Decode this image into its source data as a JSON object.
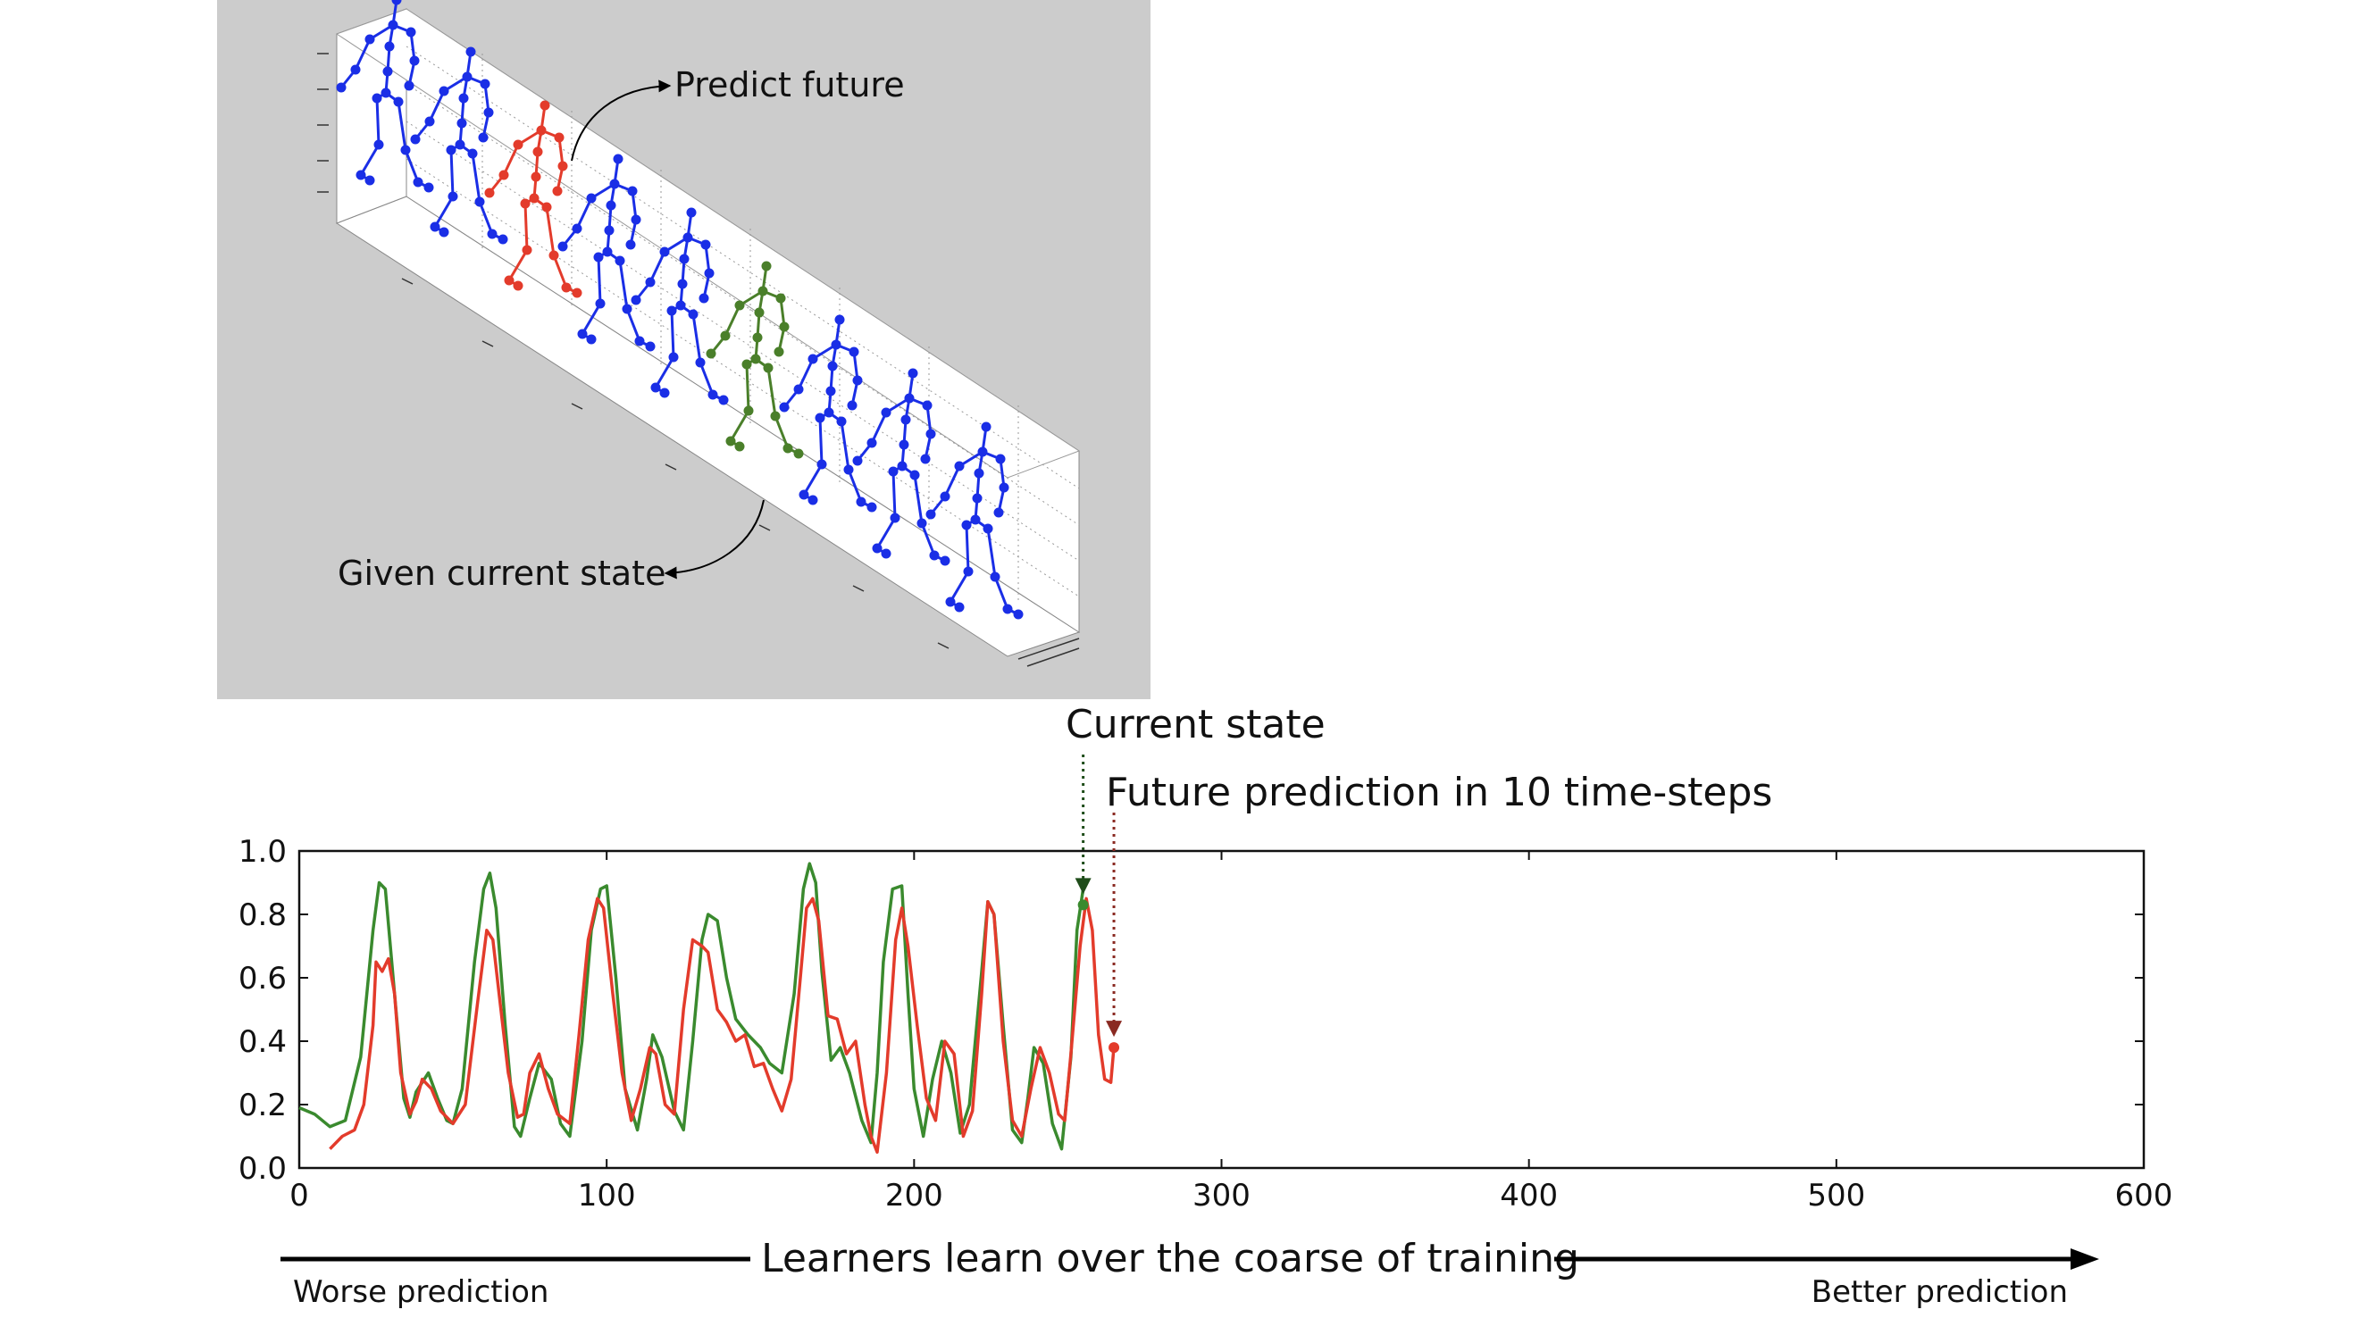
{
  "skeleton_panel": {
    "predict_label": "Predict future",
    "given_label": "Given current state",
    "figure_colors": [
      "blue",
      "blue",
      "red",
      "blue",
      "blue",
      "green",
      "blue",
      "blue",
      "blue"
    ],
    "colors": {
      "blue": "#1a2ee6",
      "red": "#e33b2b",
      "green": "#4a7f2a",
      "background": "#cccccc",
      "box": "#ffffff"
    }
  },
  "annotations": {
    "current_state": "Current state",
    "future_prediction": "Future prediction in 10 time-steps",
    "arrow_left_text": "Learners learn over the coarse of training",
    "worse": "Worse prediction",
    "better": "Better prediction"
  },
  "chart_data": {
    "type": "line",
    "xlim": [
      0,
      600
    ],
    "ylim": [
      0.0,
      1.0
    ],
    "xticks": [
      "0",
      "100",
      "200",
      "300",
      "400",
      "500",
      "600"
    ],
    "yticks": [
      "0.0",
      "0.2",
      "0.4",
      "0.6",
      "0.8",
      "1.0"
    ],
    "grid": false,
    "current_state_point": {
      "x": 255,
      "y": 0.83
    },
    "future_point": {
      "x": 265,
      "y": 0.38
    },
    "series": [
      {
        "color": "#3a8a2e",
        "x": [
          0,
          5,
          10,
          15,
          20,
          24,
          26,
          28,
          31,
          34,
          36,
          38,
          42,
          45,
          48,
          50,
          53,
          57,
          60,
          62,
          64,
          67,
          70,
          72,
          75,
          78,
          82,
          85,
          88,
          92,
          95,
          98,
          100,
          103,
          106,
          110,
          113,
          115,
          118,
          122,
          125,
          128,
          131,
          133,
          136,
          139,
          142,
          146,
          150,
          153,
          157,
          161,
          164,
          166,
          168,
          170,
          173,
          176,
          179,
          183,
          186,
          188,
          190,
          193,
          196,
          198,
          200,
          203,
          206,
          209,
          212,
          215,
          218,
          222,
          224,
          226,
          229,
          232,
          235,
          237,
          239,
          242,
          245,
          248,
          251,
          253,
          255
        ],
        "y": [
          0.19,
          0.17,
          0.13,
          0.15,
          0.35,
          0.75,
          0.9,
          0.88,
          0.55,
          0.22,
          0.16,
          0.24,
          0.3,
          0.22,
          0.15,
          0.14,
          0.25,
          0.65,
          0.88,
          0.93,
          0.82,
          0.45,
          0.13,
          0.1,
          0.22,
          0.33,
          0.28,
          0.14,
          0.1,
          0.4,
          0.75,
          0.88,
          0.89,
          0.6,
          0.25,
          0.12,
          0.28,
          0.42,
          0.35,
          0.18,
          0.12,
          0.4,
          0.72,
          0.8,
          0.78,
          0.6,
          0.47,
          0.42,
          0.38,
          0.33,
          0.3,
          0.55,
          0.88,
          0.96,
          0.9,
          0.62,
          0.34,
          0.38,
          0.3,
          0.15,
          0.08,
          0.3,
          0.65,
          0.88,
          0.89,
          0.55,
          0.25,
          0.1,
          0.28,
          0.4,
          0.3,
          0.11,
          0.2,
          0.62,
          0.84,
          0.8,
          0.45,
          0.12,
          0.08,
          0.22,
          0.38,
          0.33,
          0.14,
          0.06,
          0.35,
          0.75,
          0.88
        ]
      },
      {
        "color": "#e33b2b",
        "x": [
          10,
          14,
          18,
          21,
          24,
          25,
          27,
          29,
          31,
          33,
          36,
          38,
          40,
          43,
          46,
          50,
          54,
          58,
          61,
          63,
          65,
          68,
          71,
          73,
          75,
          78,
          81,
          84,
          88,
          91,
          94,
          97,
          99,
          102,
          105,
          108,
          111,
          114,
          116,
          119,
          122,
          125,
          128,
          131,
          133,
          136,
          139,
          142,
          145,
          148,
          151,
          154,
          157,
          160,
          163,
          165,
          167,
          169,
          172,
          175,
          178,
          181,
          184,
          186,
          188,
          191,
          194,
          196,
          198,
          201,
          204,
          207,
          210,
          213,
          216,
          219,
          222,
          224,
          226,
          229,
          232,
          235,
          238,
          241,
          244,
          247,
          249,
          251,
          254,
          256,
          258,
          260,
          262,
          264,
          265
        ],
        "y": [
          0.06,
          0.1,
          0.12,
          0.2,
          0.45,
          0.65,
          0.62,
          0.66,
          0.55,
          0.3,
          0.17,
          0.21,
          0.28,
          0.25,
          0.18,
          0.14,
          0.2,
          0.52,
          0.75,
          0.72,
          0.55,
          0.3,
          0.16,
          0.17,
          0.3,
          0.36,
          0.25,
          0.17,
          0.14,
          0.42,
          0.72,
          0.85,
          0.82,
          0.55,
          0.3,
          0.15,
          0.25,
          0.38,
          0.36,
          0.2,
          0.17,
          0.5,
          0.72,
          0.7,
          0.68,
          0.5,
          0.46,
          0.4,
          0.42,
          0.32,
          0.33,
          0.25,
          0.18,
          0.28,
          0.6,
          0.82,
          0.85,
          0.78,
          0.48,
          0.47,
          0.36,
          0.4,
          0.2,
          0.1,
          0.05,
          0.3,
          0.72,
          0.82,
          0.7,
          0.45,
          0.22,
          0.15,
          0.4,
          0.36,
          0.1,
          0.18,
          0.55,
          0.84,
          0.8,
          0.4,
          0.15,
          0.1,
          0.25,
          0.38,
          0.3,
          0.17,
          0.15,
          0.36,
          0.7,
          0.85,
          0.75,
          0.42,
          0.28,
          0.27,
          0.38
        ]
      }
    ]
  }
}
